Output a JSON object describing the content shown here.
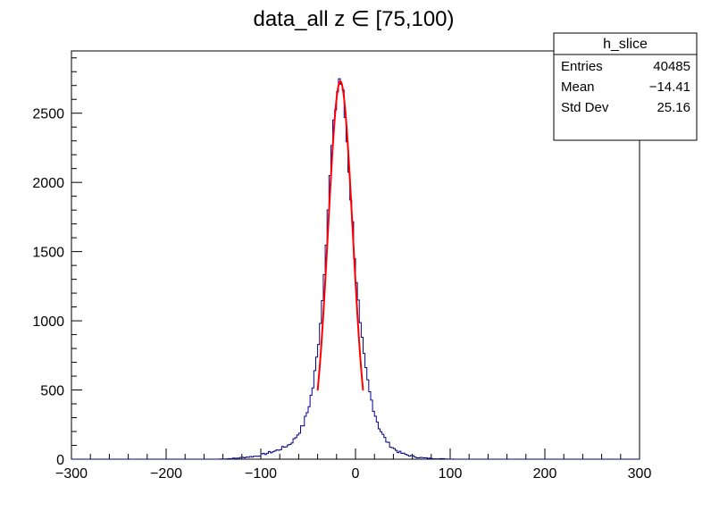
{
  "chart_data": {
    "type": "histogram",
    "title": "data_all z ∈ [75,100)",
    "xlim": [
      -300,
      300
    ],
    "ylim": [
      0,
      2950
    ],
    "x_ticks": [
      -300,
      -200,
      -100,
      0,
      100,
      200,
      300
    ],
    "x_tick_labels": [
      "−300",
      "−200",
      "−100",
      "0",
      "100",
      "200",
      "300"
    ],
    "y_ticks": [
      0,
      500,
      1000,
      1500,
      2000,
      2500
    ],
    "y_tick_labels": [
      "0",
      "500",
      "1000",
      "1500",
      "2000",
      "2500"
    ],
    "histogram": {
      "color": "#00008b",
      "bins_x": [
        -145,
        -135,
        -125,
        -115,
        -105,
        -100,
        -95,
        -90,
        -85,
        -80,
        -75,
        -70,
        -65,
        -60,
        -55,
        -50,
        -45,
        -40,
        -35,
        -30,
        -25,
        -20,
        -17,
        -14,
        -10,
        -5,
        0,
        5,
        10,
        15,
        20,
        25,
        30,
        35,
        40,
        45,
        50,
        55,
        60,
        65,
        70,
        80,
        90,
        100,
        110,
        120
      ],
      "bins_y": [
        0,
        3,
        8,
        15,
        22,
        30,
        40,
        50,
        58,
        72,
        88,
        105,
        140,
        190,
        250,
        360,
        520,
        780,
        1150,
        1700,
        2250,
        2620,
        2750,
        2700,
        2400,
        1900,
        1380,
        960,
        680,
        480,
        340,
        230,
        160,
        110,
        80,
        55,
        40,
        30,
        22,
        15,
        10,
        6,
        3,
        1,
        0,
        0
      ]
    },
    "fit": {
      "color": "#ff0000",
      "type": "gaussian",
      "amplitude": 2730,
      "mean": -16,
      "sigma": 13,
      "range": [
        -40,
        8
      ]
    },
    "stats_box": {
      "title": "h_slice",
      "rows": [
        {
          "label": "Entries",
          "value": "40485"
        },
        {
          "label": "Mean",
          "value": "−14.41"
        },
        {
          "label": "Std Dev",
          "value": "25.16"
        }
      ]
    }
  }
}
